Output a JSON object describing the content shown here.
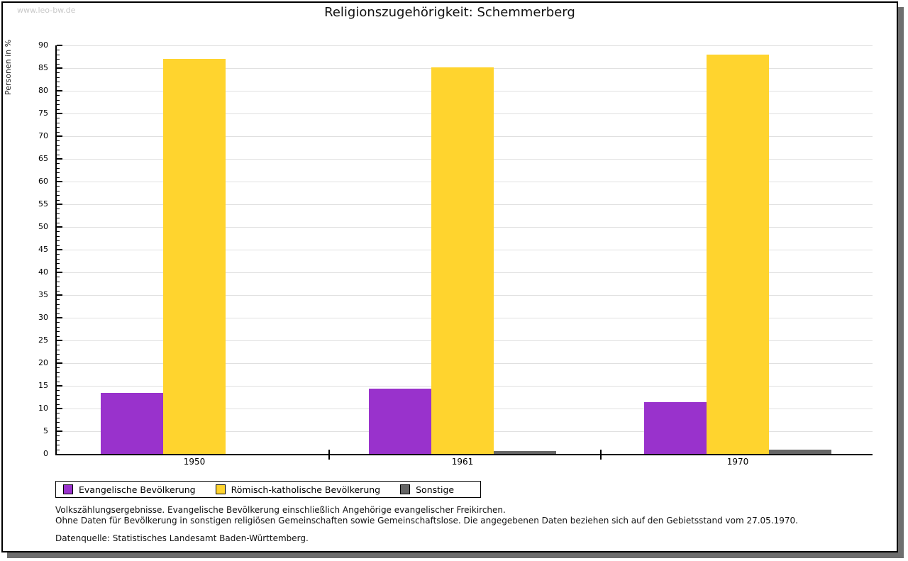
{
  "watermark": "www.leo-bw.de",
  "chart_data": {
    "type": "bar",
    "title": "Religionszugehörigkeit: Schemmerberg",
    "ylabel": "Personen in %",
    "xlabel": "",
    "categories": [
      "1950",
      "1961",
      "1970"
    ],
    "series": [
      {
        "name": "Evangelische Bevölkerung",
        "color": "#9932cc",
        "values": [
          13.5,
          14.3,
          11.4
        ]
      },
      {
        "name": "Römisch-katholische Bevölkerung",
        "color": "#ffd42e",
        "values": [
          87.0,
          85.1,
          87.9
        ]
      },
      {
        "name": "Sonstige",
        "color": "#666666",
        "values": [
          0.0,
          0.7,
          0.9
        ]
      }
    ],
    "ylim": [
      0,
      90
    ],
    "ytick_step": 5,
    "minor_tick_step": 1,
    "grid": true,
    "legend_position": "bottom-left"
  },
  "footnotes": [
    "Volkszählungsergebnisse. Evangelische Bevölkerung einschließlich Angehörige evangelischer Freikirchen.",
    "Ohne Daten für Bevölkerung in sonstigen religiösen Gemeinschaften sowie Gemeinschaftslose. Die angegebenen Daten beziehen sich auf den Gebietsstand vom 27.05.1970."
  ],
  "source": "Datenquelle: Statistisches Landesamt Baden-Württemberg."
}
